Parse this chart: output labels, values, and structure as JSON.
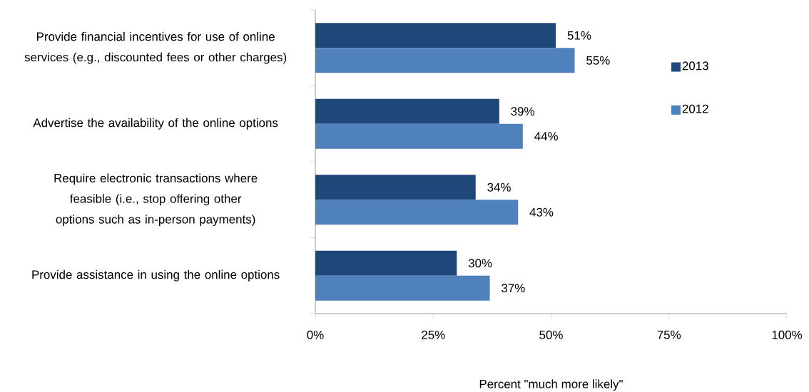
{
  "chart_data": {
    "type": "bar",
    "orientation": "horizontal",
    "categories": [
      "Provide financial incentives for use of online services (e.g., discounted fees or other charges)",
      "Advertise the availability of the online options",
      "Require electronic transactions where feasible (i.e., stop offering other options such as in-person payments)",
      "Provide assistance in using the online options"
    ],
    "series": [
      {
        "name": "2013",
        "color": "#1f477a",
        "values": [
          51,
          39,
          34,
          30
        ],
        "value_labels": [
          "51%",
          "39%",
          "34%",
          "30%"
        ]
      },
      {
        "name": "2012",
        "color": "#4f81bd",
        "values": [
          55,
          44,
          43,
          37
        ],
        "value_labels": [
          "55%",
          "44%",
          "43%",
          "37%"
        ]
      }
    ],
    "xlim": [
      0,
      100
    ],
    "xticks": [
      {
        "value": 0,
        "label": "0%"
      },
      {
        "value": 25,
        "label": "25%"
      },
      {
        "value": 50,
        "label": "50%"
      },
      {
        "value": 75,
        "label": "75%"
      },
      {
        "value": 100,
        "label": "100%"
      }
    ],
    "xlabel": "Percent \"much more likely\"",
    "legend": "right",
    "grid": false
  }
}
